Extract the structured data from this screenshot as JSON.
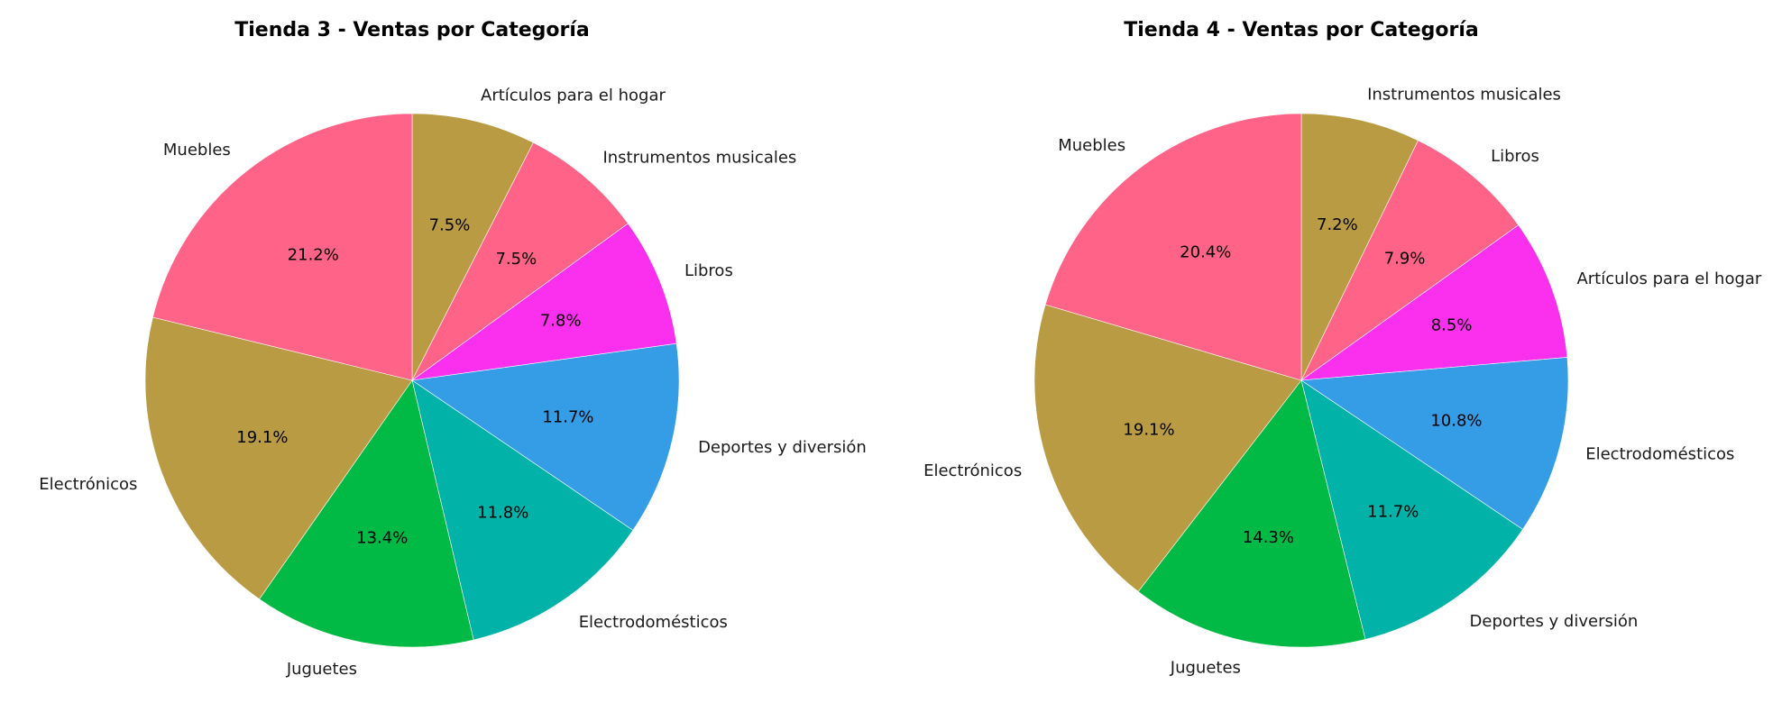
{
  "chart_data": [
    {
      "type": "pie",
      "title": "Tienda 3 - Ventas por Categoría",
      "start_angle_deg": 90,
      "direction": "clockwise",
      "slices": [
        {
          "label": "Artículos para el hogar",
          "value": 7.5,
          "pct_label": "7.5%",
          "color": "#b99b43"
        },
        {
          "label": "Instrumentos musicales",
          "value": 7.5,
          "pct_label": "7.5%",
          "color": "#ff6387"
        },
        {
          "label": "Libros",
          "value": 7.8,
          "pct_label": "7.8%",
          "color": "#fb30ee"
        },
        {
          "label": "Deportes y diversión",
          "value": 11.7,
          "pct_label": "11.7%",
          "color": "#359ce6"
        },
        {
          "label": "Electrodomésticos",
          "value": 11.8,
          "pct_label": "11.8%",
          "color": "#00b2a7"
        },
        {
          "label": "Juguetes",
          "value": 13.4,
          "pct_label": "13.4%",
          "color": "#00ba45"
        },
        {
          "label": "Electrónicos",
          "value": 19.1,
          "pct_label": "19.1%",
          "color": "#b99b43"
        },
        {
          "label": "Muebles",
          "value": 21.2,
          "pct_label": "21.2%",
          "color": "#ff6387"
        }
      ]
    },
    {
      "type": "pie",
      "title": "Tienda 4 - Ventas por Categoría",
      "start_angle_deg": 90,
      "direction": "clockwise",
      "slices": [
        {
          "label": "Instrumentos musicales",
          "value": 7.2,
          "pct_label": "7.2%",
          "color": "#b99b43"
        },
        {
          "label": "Libros",
          "value": 7.9,
          "pct_label": "7.9%",
          "color": "#ff6387"
        },
        {
          "label": "Artículos para el hogar",
          "value": 8.5,
          "pct_label": "8.5%",
          "color": "#fb30ee"
        },
        {
          "label": "Electrodomésticos",
          "value": 10.8,
          "pct_label": "10.8%",
          "color": "#359ce6"
        },
        {
          "label": "Deportes y diversión",
          "value": 11.7,
          "pct_label": "11.7%",
          "color": "#00b2a7"
        },
        {
          "label": "Juguetes",
          "value": 14.3,
          "pct_label": "14.3%",
          "color": "#00ba45"
        },
        {
          "label": "Electrónicos",
          "value": 19.1,
          "pct_label": "19.1%",
          "color": "#b99b43"
        },
        {
          "label": "Muebles",
          "value": 20.4,
          "pct_label": "20.4%",
          "color": "#ff6387"
        }
      ]
    }
  ]
}
